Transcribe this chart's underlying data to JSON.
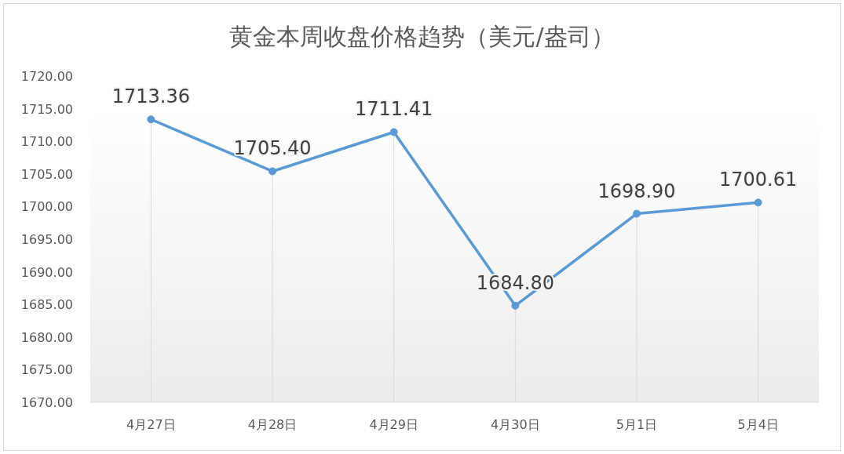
{
  "chart_data": {
    "type": "line",
    "title": "黄金本周收盘价格趋势（美元/盎司）",
    "categories": [
      "4月27日",
      "4月28日",
      "4月29日",
      "4月30日",
      "5月1日",
      "5月4日"
    ],
    "series": [
      {
        "color": "#5b9bd5",
        "values": [
          1713.36,
          1705.4,
          1711.41,
          1684.8,
          1698.9,
          1700.61
        ],
        "value_labels": [
          "1713.36",
          "1705.40",
          "1711.41",
          "1684.80",
          "1698.90",
          "1700.61"
        ]
      }
    ],
    "ylim": [
      1670,
      1720
    ],
    "yticks": [
      {
        "value": 1670,
        "label": "1670.00"
      },
      {
        "value": 1675,
        "label": "1675.00"
      },
      {
        "value": 1680,
        "label": "1680.00"
      },
      {
        "value": 1685,
        "label": "1685.00"
      },
      {
        "value": 1690,
        "label": "1690.00"
      },
      {
        "value": 1695,
        "label": "1695.00"
      },
      {
        "value": 1700,
        "label": "1700.00"
      },
      {
        "value": 1705,
        "label": "1705.00"
      },
      {
        "value": 1710,
        "label": "1710.00"
      },
      {
        "value": 1715,
        "label": "1715.00"
      },
      {
        "value": 1720,
        "label": "1720.00"
      }
    ],
    "grid": "x",
    "marker": "circle",
    "line_style": "solid"
  }
}
